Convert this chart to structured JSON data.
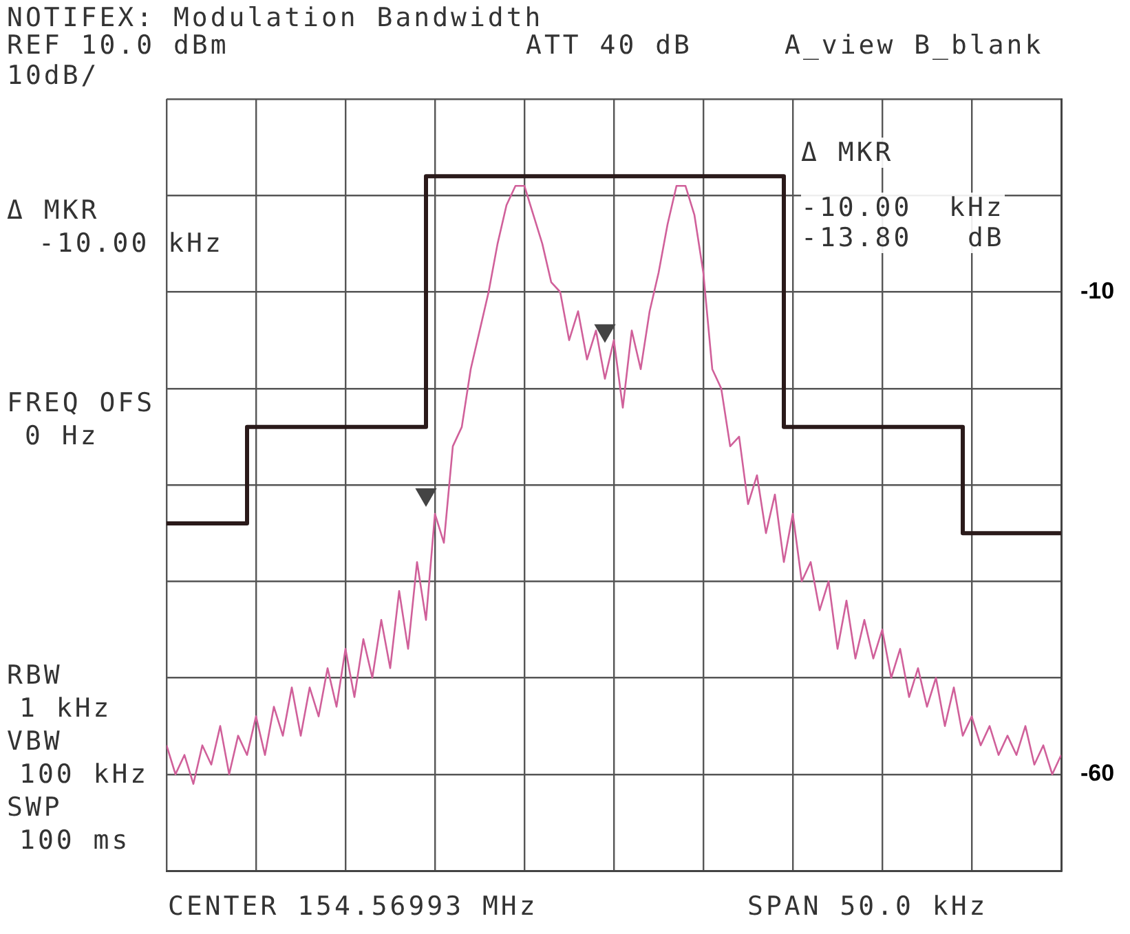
{
  "chart_data": {
    "type": "line",
    "title": "NOTIFEX: Modulation Bandwidth",
    "annotations": [
      "REF 10.0 dBm",
      "ATT 40 dB",
      "A_view B_blank",
      "10dB/",
      "Δ MKR",
      "-10.00 kHz",
      "FREQ OFS",
      "0 Hz",
      "RBW",
      "1 kHz",
      "VBW",
      "100 kHz",
      "SWP",
      "100 ms",
      "CENTER 154.56993 MHz",
      "SPAN 50.0 kHz",
      "Δ MKR",
      "-10.00  kHz",
      "-13.80   dB"
    ],
    "categories": [
      null,
      null,
      null,
      null,
      null,
      null,
      null,
      null,
      null,
      null,
      null,
      null,
      null,
      null,
      null,
      null,
      null,
      null,
      null,
      null,
      null,
      null,
      null,
      null,
      null,
      null,
      null,
      null,
      null,
      null,
      null,
      null,
      null,
      null,
      null,
      null,
      null,
      null,
      null,
      null,
      null,
      null,
      null,
      null,
      null,
      null,
      null,
      null,
      null,
      null,
      null,
      null,
      null,
      null,
      null,
      null,
      null,
      null,
      null,
      null,
      null,
      null,
      null,
      null,
      null,
      null,
      null,
      null,
      null,
      null,
      null,
      null,
      null,
      null,
      null,
      null,
      null,
      null,
      null,
      null,
      null,
      null,
      null,
      null,
      null,
      null,
      null,
      null,
      null,
      null,
      null,
      null,
      null,
      null,
      null,
      null,
      null,
      null,
      null,
      null,
      null
    ],
    "series": [
      {
        "color": "#d0609a",
        "marker": "none",
        "values": [
          -57,
          -60,
          -58,
          -61,
          -57,
          -59,
          -55,
          -60,
          -56,
          -58,
          -54,
          -58,
          -53,
          -56,
          -51,
          -56,
          -51,
          -54,
          -49,
          -53,
          -47,
          -52,
          -46,
          -50,
          -44,
          -49,
          -41,
          -47,
          -38,
          -44,
          -33,
          -36,
          -26,
          -24,
          -18,
          -14,
          -10,
          -5,
          -1,
          1,
          1,
          -2,
          -5,
          -9,
          -10,
          -15,
          -12,
          -17,
          -14,
          -19,
          -15,
          -22,
          -14,
          -18,
          -12,
          -8,
          -3,
          1,
          1,
          -2,
          -8,
          -18,
          -20,
          -26,
          -25,
          -32,
          -29,
          -35,
          -31,
          -38,
          -33,
          -40,
          -38,
          -43,
          -40,
          -47,
          -42,
          -48,
          -44,
          -48,
          -45,
          -50,
          -47,
          -52,
          -49,
          -53,
          -50,
          -55,
          -51,
          -56,
          -54,
          -57,
          -55,
          -58,
          -56,
          -58,
          -55,
          -59,
          -57,
          -60,
          -58
        ]
      },
      {
        "type": "step",
        "color": "#2a1a1a",
        "marker": "none",
        "values": [
          -34,
          -34,
          -34,
          -34,
          -34,
          -34,
          -34,
          -34,
          -34,
          -34,
          -24,
          -24,
          -24,
          -24,
          -24,
          -24,
          -24,
          -24,
          -24,
          -24,
          -24,
          -24,
          -24,
          -24,
          -24,
          -24,
          -24,
          -24,
          -24,
          -24,
          2,
          2,
          2,
          2,
          2,
          2,
          2,
          2,
          2,
          2,
          2,
          2,
          2,
          2,
          2,
          2,
          2,
          2,
          2,
          2,
          2,
          2,
          2,
          2,
          2,
          2,
          2,
          2,
          2,
          2,
          2,
          2,
          2,
          2,
          2,
          2,
          2,
          2,
          2,
          2,
          -24,
          -24,
          -24,
          -24,
          -24,
          -24,
          -24,
          -24,
          -24,
          -24,
          -24,
          -24,
          -24,
          -24,
          -24,
          -24,
          -24,
          -24,
          -24,
          -24,
          -35,
          -35,
          -35,
          -35,
          -35,
          -35,
          -35,
          -35,
          -35,
          -35,
          -35
        ]
      },
      {
        "type": "scatter",
        "color": "#444444",
        "marker": "triangle",
        "values": [
          null,
          null,
          null,
          null,
          null,
          null,
          null,
          null,
          null,
          null,
          null,
          null,
          null,
          null,
          null,
          null,
          null,
          null,
          null,
          null,
          null,
          null,
          null,
          null,
          null,
          null,
          null,
          null,
          null,
          -31,
          null,
          null,
          null,
          null,
          null,
          null,
          null,
          null,
          null,
          null,
          null,
          null,
          null,
          null,
          null,
          null,
          null,
          null,
          null,
          null,
          null,
          null,
          null,
          null,
          null,
          null,
          null,
          null,
          null,
          null,
          null,
          null,
          null,
          null,
          null,
          null,
          null,
          null,
          null,
          null,
          null,
          null,
          null,
          null,
          null,
          null,
          null,
          null,
          null,
          null,
          null,
          null,
          null,
          null,
          null,
          null,
          null,
          null,
          null,
          null,
          null,
          null,
          null,
          null,
          null,
          null,
          null,
          null,
          null,
          null,
          null
        ]
      },
      {
        "type": "scatter",
        "color": "#444444",
        "marker": "triangle",
        "values": [
          null,
          null,
          null,
          null,
          null,
          null,
          null,
          null,
          null,
          null,
          null,
          null,
          null,
          null,
          null,
          null,
          null,
          null,
          null,
          null,
          null,
          null,
          null,
          null,
          null,
          null,
          null,
          null,
          null,
          null,
          null,
          null,
          null,
          null,
          null,
          null,
          null,
          null,
          null,
          null,
          null,
          null,
          null,
          null,
          null,
          null,
          null,
          null,
          null,
          -14,
          null,
          null,
          null,
          null,
          null,
          null,
          null,
          null,
          null,
          null,
          null,
          null,
          null,
          null,
          null,
          null,
          null,
          null,
          null,
          null,
          null,
          null,
          null,
          null,
          null,
          null,
          null,
          null,
          null,
          null,
          null,
          null,
          null,
          null,
          null,
          null,
          null,
          null,
          null,
          null,
          null,
          null,
          null,
          null,
          null,
          null,
          null,
          null,
          null,
          null,
          null
        ]
      }
    ],
    "ylim": [
      -70,
      10
    ],
    "yticks": [
      {
        "value": 10,
        "label": null
      },
      {
        "value": 0,
        "label": null
      },
      -10,
      {
        "value": -20,
        "label": null
      },
      {
        "value": -30,
        "label": null
      },
      {
        "value": -40,
        "label": null
      },
      {
        "value": -50,
        "label": null
      },
      -60,
      {
        "value": -70,
        "label": null
      }
    ],
    "grid": true,
    "legend": false,
    "tick_labels": "y"
  }
}
